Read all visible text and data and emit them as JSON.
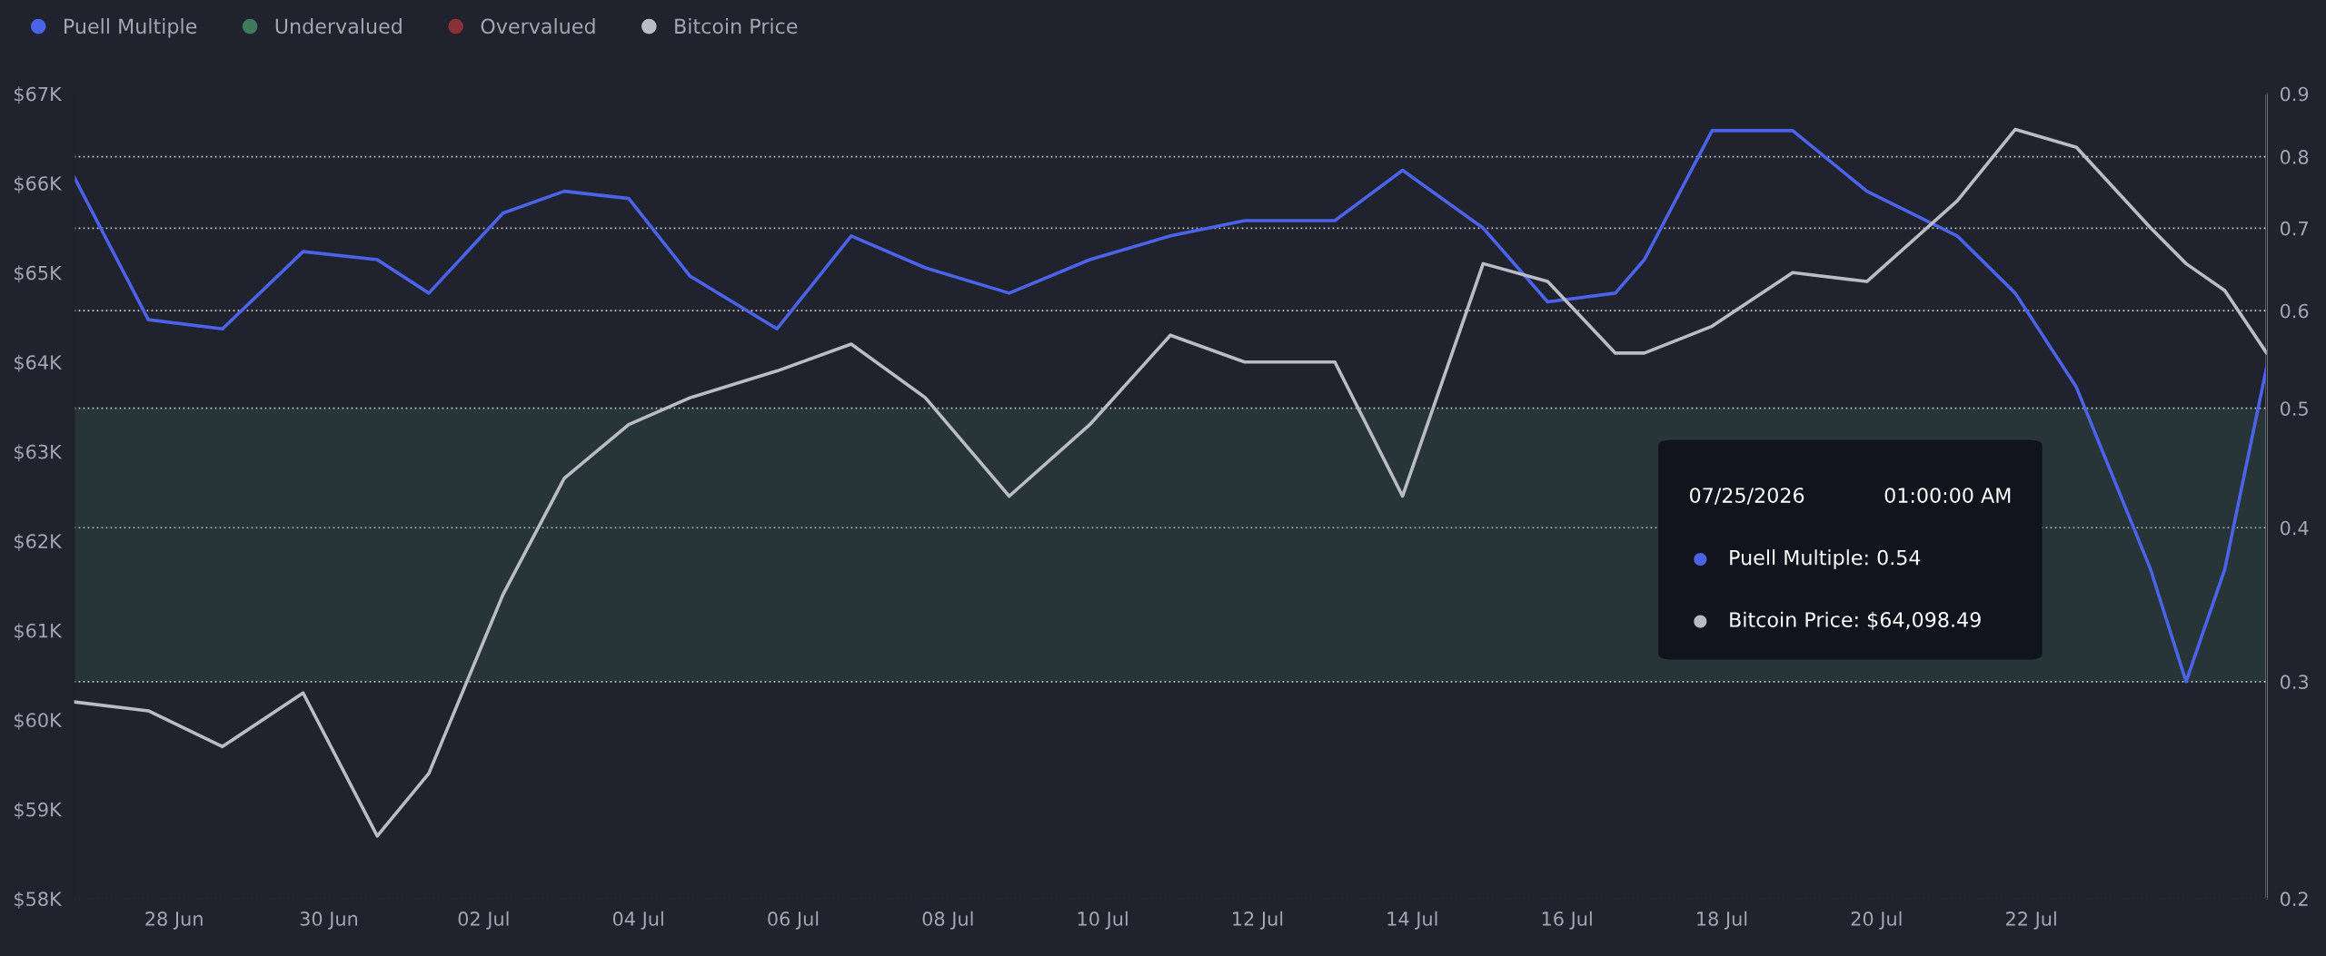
{
  "chart_data": {
    "type": "line",
    "x": [
      "2026-06-26T17:00",
      "2026-06-27T16:00",
      "2026-06-28T15:00",
      "2026-06-29T16:00",
      "2026-06-30T15:00",
      "2026-07-01T07:00",
      "2026-07-02T06:00",
      "2026-07-03T01:00",
      "2026-07-03T21:00",
      "2026-07-04T16:00",
      "2026-07-05T19:00",
      "2026-07-06T18:00",
      "2026-07-07T17:00",
      "2026-07-08T19:00",
      "2026-07-09T20:00",
      "2026-07-10T21:00",
      "2026-07-11T20:00",
      "2026-07-13T00:00",
      "2026-07-13T21:00",
      "2026-07-14T22:00",
      "2026-07-15T18:00",
      "2026-07-16T15:00",
      "2026-07-17T00:00",
      "2026-07-17T21:00",
      "2026-07-18T22:00",
      "2026-07-19T21:00",
      "2026-07-21T01:00",
      "2026-07-21T19:00",
      "2026-07-22T14:00",
      "2026-07-23T13:00",
      "2026-07-24T00:00",
      "2026-07-24T12:00",
      "2026-07-25T01:00"
    ],
    "series": [
      {
        "name": "Puell Multiple",
        "color": "#4a63e8",
        "axis": "y2",
        "values": [
          0.77,
          0.59,
          0.58,
          0.67,
          0.66,
          0.62,
          0.72,
          0.75,
          0.74,
          0.64,
          0.58,
          0.69,
          0.65,
          0.62,
          0.66,
          0.69,
          0.71,
          0.71,
          0.78,
          0.7,
          0.61,
          0.62,
          0.66,
          0.84,
          0.84,
          0.75,
          0.69,
          0.62,
          0.52,
          0.37,
          0.3,
          0.37,
          0.54
        ]
      },
      {
        "name": "Overvalued",
        "color": "#8a3038",
        "axis": "y2",
        "values": [
          null,
          null,
          null,
          null,
          null,
          null,
          null,
          null,
          null,
          null,
          null,
          null,
          null,
          null,
          null,
          null,
          null,
          null,
          null,
          null,
          null,
          null,
          null,
          null,
          null,
          null,
          null,
          null,
          null,
          null,
          null,
          null,
          null
        ]
      },
      {
        "name": "Bitcoin Price",
        "color": "#b9bcc4",
        "values": [
          60200,
          60100,
          59700,
          60300,
          58700,
          59400,
          61400,
          62700,
          63300,
          63600,
          63900,
          64200,
          63600,
          62500,
          63300,
          64300,
          64000,
          64000,
          62500,
          65100,
          64900,
          64100,
          64100,
          64400,
          65000,
          64900,
          65800,
          66600,
          66400,
          65500,
          65100,
          64800,
          64100
        ]
      }
    ],
    "bands": [
      {
        "axis": "y2",
        "from": 0.3,
        "to": 0.5,
        "label": "Undervalued",
        "color": "#3f7a5e"
      }
    ],
    "log": "y2",
    "ylim": [
      58000,
      67000
    ],
    "yticks": [
      {
        "value": 58000,
        "label": "$58K"
      },
      {
        "value": 59000,
        "label": "$59K"
      },
      {
        "value": 60000,
        "label": "$60K"
      },
      {
        "value": 61000,
        "label": "$61K"
      },
      {
        "value": 62000,
        "label": "$62K"
      },
      {
        "value": 63000,
        "label": "$63K"
      },
      {
        "value": 64000,
        "label": "$64K"
      },
      {
        "value": 65000,
        "label": "$65K"
      },
      {
        "value": 66000,
        "label": "$66K"
      },
      {
        "value": 67000,
        "label": "$67K"
      }
    ],
    "y2lim": [
      0.2,
      0.9
    ],
    "y2ticks": [
      0.2,
      0.3,
      0.4,
      0.5,
      0.6,
      0.7,
      0.8,
      0.9
    ],
    "xlim": [
      "2026-06-26T17:00",
      "2026-07-25T01:00"
    ],
    "xticks": [
      {
        "value": "2026-06-28",
        "label": "28 Jun"
      },
      {
        "value": "2026-06-30",
        "label": "30 Jun"
      },
      {
        "value": "2026-07-02",
        "label": "02 Jul"
      },
      {
        "value": "2026-07-04",
        "label": "04 Jul"
      },
      {
        "value": "2026-07-06",
        "label": "06 Jul"
      },
      {
        "value": "2026-07-08",
        "label": "08 Jul"
      },
      {
        "value": "2026-07-10",
        "label": "10 Jul"
      },
      {
        "value": "2026-07-12",
        "label": "12 Jul"
      },
      {
        "value": "2026-07-14",
        "label": "14 Jul"
      },
      {
        "value": "2026-07-16",
        "label": "16 Jul"
      },
      {
        "value": "2026-07-18",
        "label": "18 Jul"
      },
      {
        "value": "2026-07-20",
        "label": "20 Jul"
      },
      {
        "value": "2026-07-22",
        "label": "22 Jul"
      }
    ],
    "grid": "y2",
    "legend": "top left",
    "marker": "none",
    "line_style": "solid",
    "annotations": [
      "07/25/2026",
      "01:00:00 AM",
      "Puell Multiple: 0.54",
      "Bitcoin Price: $64,098.49"
    ]
  }
}
